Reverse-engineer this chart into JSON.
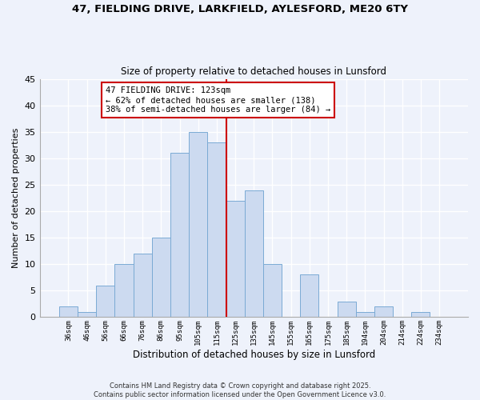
{
  "title_line1": "47, FIELDING DRIVE, LARKFIELD, AYLESFORD, ME20 6TY",
  "title_line2": "Size of property relative to detached houses in Lunsford",
  "xlabel": "Distribution of detached houses by size in Lunsford",
  "ylabel": "Number of detached properties",
  "bar_labels": [
    "36sqm",
    "46sqm",
    "56sqm",
    "66sqm",
    "76sqm",
    "86sqm",
    "95sqm",
    "105sqm",
    "115sqm",
    "125sqm",
    "135sqm",
    "145sqm",
    "155sqm",
    "165sqm",
    "175sqm",
    "185sqm",
    "194sqm",
    "204sqm",
    "214sqm",
    "224sqm",
    "234sqm"
  ],
  "bar_values": [
    2,
    1,
    6,
    10,
    12,
    15,
    31,
    35,
    33,
    22,
    24,
    10,
    0,
    8,
    0,
    3,
    1,
    2,
    0,
    1,
    0
  ],
  "bar_color": "#ccdaf0",
  "bar_edge_color": "#7aaad4",
  "vline_color": "#cc0000",
  "annotation_title": "47 FIELDING DRIVE: 123sqm",
  "annotation_line1": "← 62% of detached houses are smaller (138)",
  "annotation_line2": "38% of semi-detached houses are larger (84) →",
  "footnote_line1": "Contains HM Land Registry data © Crown copyright and database right 2025.",
  "footnote_line2": "Contains public sector information licensed under the Open Government Licence v3.0.",
  "ylim": [
    0,
    45
  ],
  "yticks": [
    0,
    5,
    10,
    15,
    20,
    25,
    30,
    35,
    40,
    45
  ],
  "background_color": "#eef2fb",
  "plot_bg_color": "#eef2fb",
  "grid_color": "#ffffff"
}
